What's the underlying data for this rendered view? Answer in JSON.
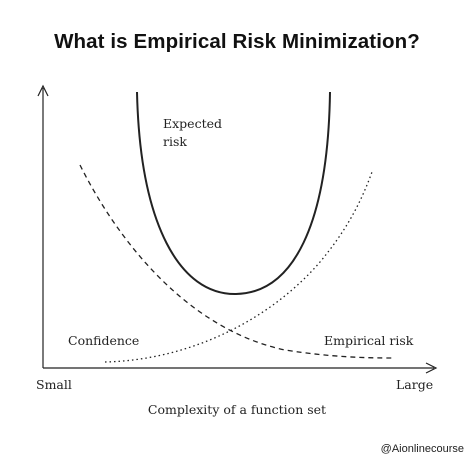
{
  "title": "What is Empirical Risk Minimization?",
  "diagram": {
    "curves": {
      "expected_risk": {
        "label_line1": "Expected",
        "label_line2": "risk",
        "style": "solid"
      },
      "confidence": {
        "label": "Confidence",
        "style": "dashed"
      },
      "empirical_risk": {
        "label": "Empirical risk",
        "style": "dotted"
      }
    },
    "axis": {
      "x_min_label": "Small",
      "x_max_label": "Large",
      "x_title": "Complexity of a function set"
    },
    "colors": {
      "ink": "#222222",
      "background": "#ffffff"
    }
  },
  "watermark": "@Aionlinecourse"
}
